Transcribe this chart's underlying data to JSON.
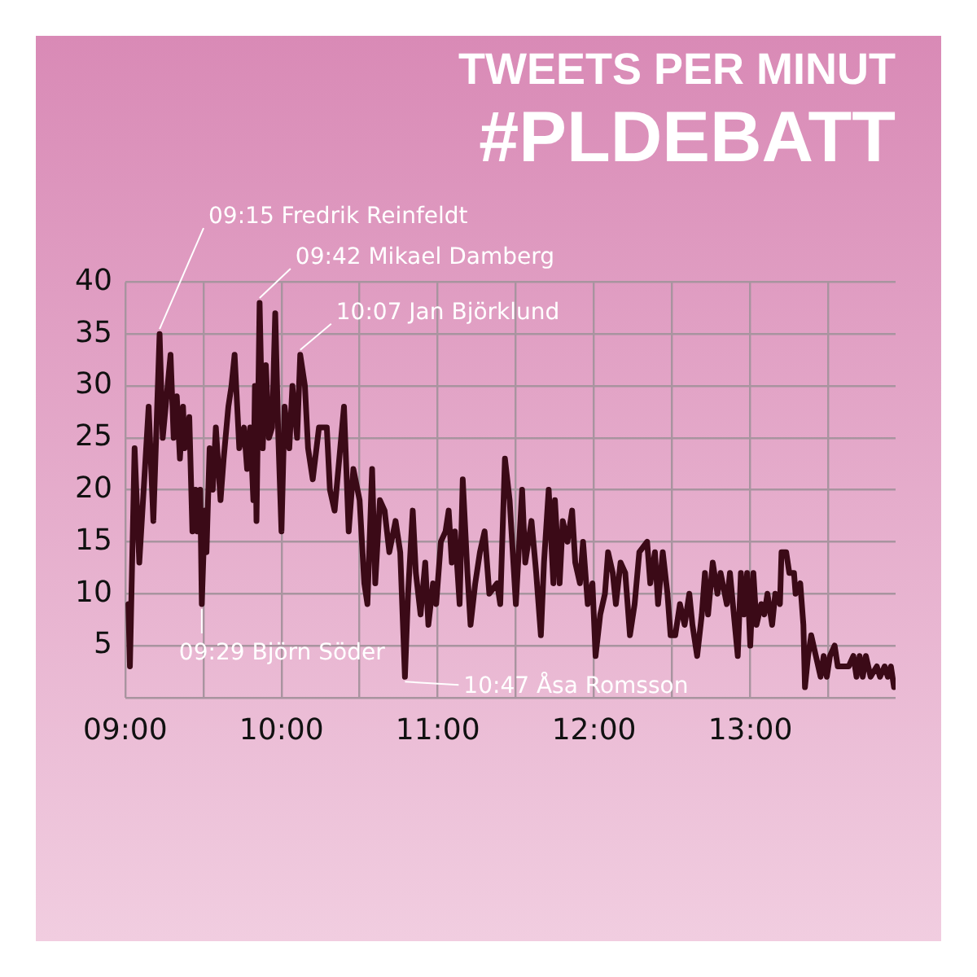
{
  "chart_data": {
    "type": "line",
    "title": "TWEETS PER MINUT",
    "subtitle": "#PLDEBATT",
    "xlim": [
      9,
      13.93
    ],
    "xticks": [
      {
        "value": 9,
        "label": "09:00"
      },
      {
        "value": 9.5,
        "label": null
      },
      {
        "value": 10,
        "label": "10:00"
      },
      {
        "value": 10.5,
        "label": null
      },
      {
        "value": 11,
        "label": "11:00"
      },
      {
        "value": 11.5,
        "label": null
      },
      {
        "value": 12,
        "label": "12:00"
      },
      {
        "value": 12.5,
        "label": null
      },
      {
        "value": 13,
        "label": "13:00"
      },
      {
        "value": 13.5,
        "label": null
      }
    ],
    "ylim": [
      0,
      40
    ],
    "yticks": [
      {
        "value": 0,
        "label": null
      },
      5,
      10,
      15,
      20,
      25,
      30,
      35,
      40
    ],
    "grid": true,
    "series": [
      {
        "color": "#3b0a17",
        "x": [
          9.02,
          9.03,
          9.06,
          9.09,
          9.15,
          9.18,
          9.22,
          9.24,
          9.29,
          9.31,
          9.33,
          9.35,
          9.37,
          9.38,
          9.41,
          9.43,
          9.45,
          9.46,
          9.48,
          9.49,
          9.51,
          9.52,
          9.54,
          9.56,
          9.58,
          9.61,
          9.63,
          9.66,
          9.68,
          9.7,
          9.73,
          9.76,
          9.78,
          9.8,
          9.82,
          9.83,
          9.84,
          9.86,
          9.88,
          9.9,
          9.92,
          9.94,
          9.96,
          9.98,
          10.0,
          10.02,
          10.05,
          10.07,
          10.1,
          10.12,
          10.15,
          10.17,
          10.2,
          10.24,
          10.29,
          10.31,
          10.34,
          10.4,
          10.43,
          10.46,
          10.5,
          10.53,
          10.55,
          10.58,
          10.6,
          10.63,
          10.66,
          10.69,
          10.73,
          10.76,
          10.79,
          10.81,
          10.84,
          10.86,
          10.89,
          10.92,
          10.94,
          10.97,
          10.99,
          11.02,
          11.05,
          11.07,
          11.09,
          11.11,
          11.14,
          11.16,
          11.19,
          11.21,
          11.24,
          11.27,
          11.3,
          11.33,
          11.38,
          11.4,
          11.43,
          11.46,
          11.5,
          11.54,
          11.56,
          11.6,
          11.63,
          11.66,
          11.68,
          11.71,
          11.74,
          11.75,
          11.78,
          11.8,
          11.83,
          11.86,
          11.88,
          11.91,
          11.93,
          11.96,
          11.99,
          12.01,
          12.04,
          12.07,
          12.09,
          12.12,
          12.14,
          12.17,
          12.2,
          12.23,
          12.26,
          12.29,
          12.34,
          12.36,
          12.39,
          12.41,
          12.44,
          12.47,
          12.49,
          12.52,
          12.55,
          12.58,
          12.61,
          12.63,
          12.66,
          12.69,
          12.71,
          12.73,
          12.76,
          12.79,
          12.81,
          12.85,
          12.87,
          12.92,
          12.94,
          12.96,
          12.98,
          13.0,
          13.02,
          13.04,
          13.07,
          13.09,
          13.11,
          13.14,
          13.16,
          13.19,
          13.2,
          13.23,
          13.25,
          13.28,
          13.29,
          13.32,
          13.34,
          13.35,
          13.37,
          13.39,
          13.42,
          13.45,
          13.47,
          13.49,
          13.51,
          13.54,
          13.56,
          13.58,
          13.6,
          13.63,
          13.66,
          13.68,
          13.7,
          13.72,
          13.74,
          13.77,
          13.81,
          13.83,
          13.86,
          13.88,
          13.9,
          13.92
        ],
        "values": [
          9,
          3,
          24,
          13,
          28,
          17,
          35,
          25,
          33,
          25,
          29,
          23,
          28,
          24,
          27,
          16,
          20,
          16,
          20,
          9,
          18,
          14,
          24,
          20,
          26,
          19,
          23,
          28,
          30,
          33,
          24,
          26,
          22,
          26,
          19,
          30,
          17,
          38,
          24,
          32,
          25,
          26,
          37,
          25,
          16,
          28,
          24,
          30,
          25,
          33,
          30,
          24,
          21,
          26,
          26,
          20,
          18,
          28,
          16,
          22,
          19,
          11,
          9,
          22,
          11,
          19,
          18,
          14,
          17,
          14,
          2,
          10,
          18,
          12,
          8,
          13,
          7,
          11,
          9,
          15,
          16,
          18,
          13,
          16,
          9,
          21,
          12,
          7,
          11,
          14,
          16,
          10,
          11,
          9,
          23,
          19,
          9,
          20,
          13,
          17,
          12,
          6,
          13,
          20,
          11,
          19,
          11,
          17,
          15,
          18,
          13,
          11,
          15,
          9,
          11,
          4,
          8,
          10,
          14,
          12,
          9,
          13,
          12,
          6,
          9,
          14,
          15,
          11,
          14,
          9,
          14,
          10,
          6,
          6,
          9,
          7,
          10,
          7,
          4,
          8,
          12,
          8,
          13,
          10,
          12,
          9,
          12,
          4,
          12,
          8,
          12,
          5,
          12,
          7,
          9,
          8,
          10,
          7,
          10,
          9,
          14,
          14,
          12,
          12,
          10,
          11,
          7,
          1,
          4,
          6,
          4,
          2,
          4,
          2,
          4,
          5,
          3,
          3,
          3,
          3,
          4,
          2,
          4,
          2,
          4,
          2,
          3,
          2,
          3,
          2,
          3,
          1
        ]
      }
    ],
    "annotations": [
      {
        "text": "09:15 Fredrik Reinfeldt",
        "x": 9.22,
        "y": 35
      },
      {
        "text": "09:42 Mikael Damberg",
        "x": 9.86,
        "y": 38
      },
      {
        "text": "10:07 Jan Björklund",
        "x": 10.12,
        "y": 33
      },
      {
        "text": "09:29 Björn Söder",
        "x": 9.49,
        "y": 9
      },
      {
        "text": "10:47 Åsa Romsson",
        "x": 10.79,
        "y": 2
      }
    ]
  }
}
